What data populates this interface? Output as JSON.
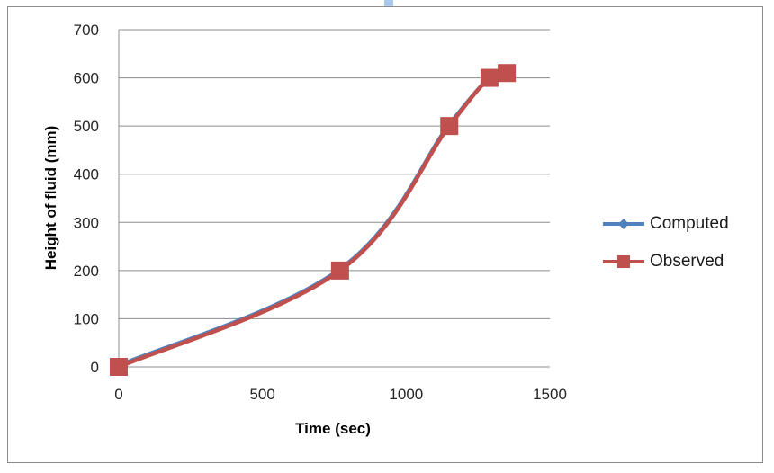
{
  "chart_data": {
    "type": "line",
    "title": "",
    "xlabel": "Time (sec)",
    "ylabel": "Height of fluid (mm)",
    "xlim": [
      0,
      1500
    ],
    "ylim": [
      0,
      700
    ],
    "xticks": [
      "0",
      "500",
      "1000",
      "1500"
    ],
    "yticks": [
      "0",
      "100",
      "200",
      "300",
      "400",
      "500",
      "600",
      "700"
    ],
    "grid": "horizontal",
    "legend_position": "right",
    "series": [
      {
        "name": "Computed",
        "color": "#4f81bd",
        "marker": "diamond",
        "x": [
          0,
          770,
          1150,
          1290
        ],
        "y": [
          0,
          200,
          500,
          600
        ]
      },
      {
        "name": "Observed",
        "color": "#c0504d",
        "marker": "square",
        "x": [
          0,
          770,
          1150,
          1290,
          1350
        ],
        "y": [
          0,
          200,
          500,
          600,
          610
        ]
      }
    ]
  },
  "legend": {
    "items": [
      {
        "label": "Computed"
      },
      {
        "label": "Observed"
      }
    ]
  }
}
